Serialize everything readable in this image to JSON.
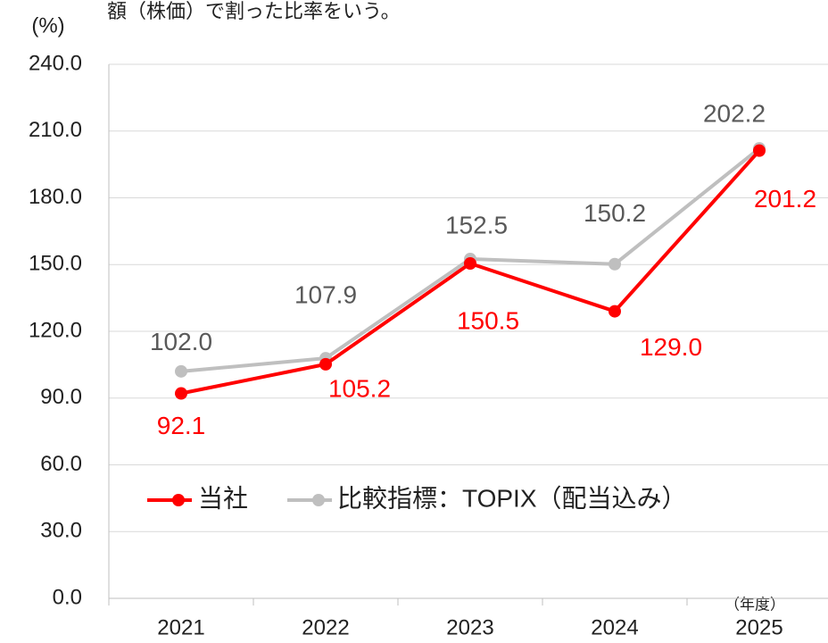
{
  "chart_data": {
    "type": "line",
    "annotation": "額（株価）で割った比率をいう。",
    "y_label": "(%)",
    "x_label": "（年度）",
    "categories": [
      "2021",
      "2022",
      "2023",
      "2024",
      "2025"
    ],
    "series": [
      {
        "name": "当社",
        "color": "#ff0000",
        "values": [
          92.1,
          105.2,
          150.5,
          129.0,
          201.2
        ],
        "value_labels": [
          "92.1",
          "105.2",
          "150.5",
          "129.0",
          "201.2"
        ]
      },
      {
        "name": "比較指標：TOPIX（配当込み）",
        "color": "#bfbfbf",
        "values": [
          102.0,
          107.9,
          152.5,
          150.2,
          202.2
        ],
        "value_labels": [
          "102.0",
          "107.9",
          "152.5",
          "150.2",
          "202.2"
        ]
      }
    ],
    "ylim": [
      0,
      240
    ],
    "yticks": [
      {
        "value": 0,
        "label": "0.0"
      },
      {
        "value": 30,
        "label": "30.0"
      },
      {
        "value": 60,
        "label": "60.0"
      },
      {
        "value": 90,
        "label": "90.0"
      },
      {
        "value": 120,
        "label": "120.0"
      },
      {
        "value": 150,
        "label": "150.0"
      },
      {
        "value": 180,
        "label": "180.0"
      },
      {
        "value": 210,
        "label": "210.0"
      },
      {
        "value": 240,
        "label": "240.0"
      }
    ],
    "grid": true
  }
}
